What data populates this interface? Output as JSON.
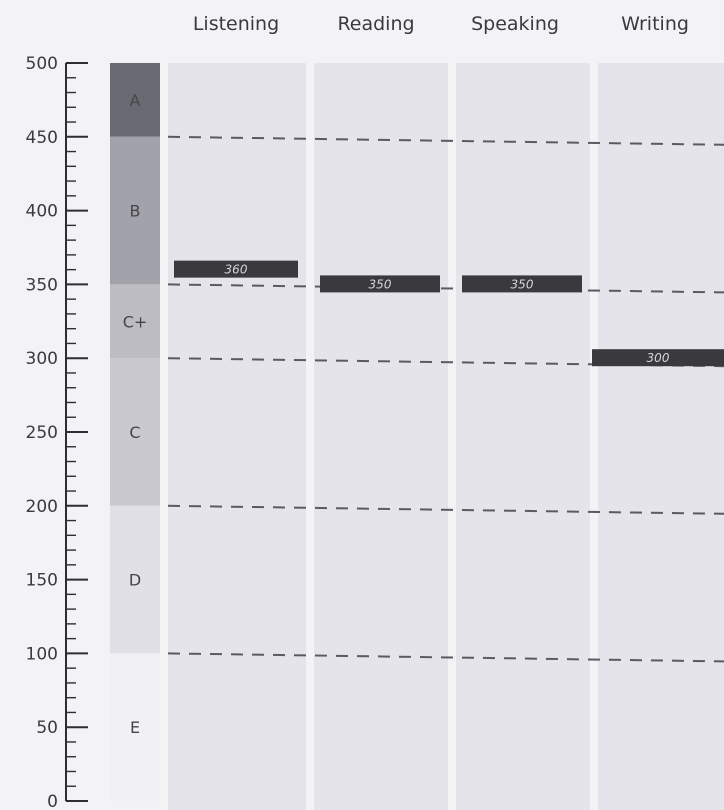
{
  "chart_data": {
    "type": "bar",
    "categories": [
      "Listening",
      "Reading",
      "Speaking",
      "Writing"
    ],
    "values": [
      360,
      350,
      350,
      300
    ],
    "score_labels": [
      "360",
      "350",
      "350",
      "300"
    ],
    "ylim": [
      0,
      500
    ],
    "yticks": [
      0,
      50,
      100,
      150,
      200,
      250,
      300,
      350,
      400,
      450,
      500
    ],
    "y_tick_labels": [
      "0",
      "50",
      "100",
      "150",
      "200",
      "250",
      "300",
      "350",
      "400",
      "450",
      "500"
    ],
    "grade_bands": [
      {
        "label": "A",
        "from": 450,
        "to": 500,
        "color": "#6a6a72"
      },
      {
        "label": "B",
        "from": 350,
        "to": 450,
        "color": "#a2a2aa"
      },
      {
        "label": "C+",
        "from": 300,
        "to": 350,
        "color": "#bcbcc2"
      },
      {
        "label": "C",
        "from": 200,
        "to": 300,
        "color": "#c8c8ce"
      },
      {
        "label": "D",
        "from": 100,
        "to": 200,
        "color": "#e0e0e6"
      },
      {
        "label": "E",
        "from": 0,
        "to": 100,
        "color": "#f1f1f4"
      }
    ],
    "thresholds": [
      450,
      350,
      300,
      200,
      100
    ],
    "grid": false,
    "legend": "none",
    "colors": {
      "score_bar": "#3a3a3e",
      "column": "#e4e4ea",
      "threshold_line": "#5a5a60"
    }
  }
}
